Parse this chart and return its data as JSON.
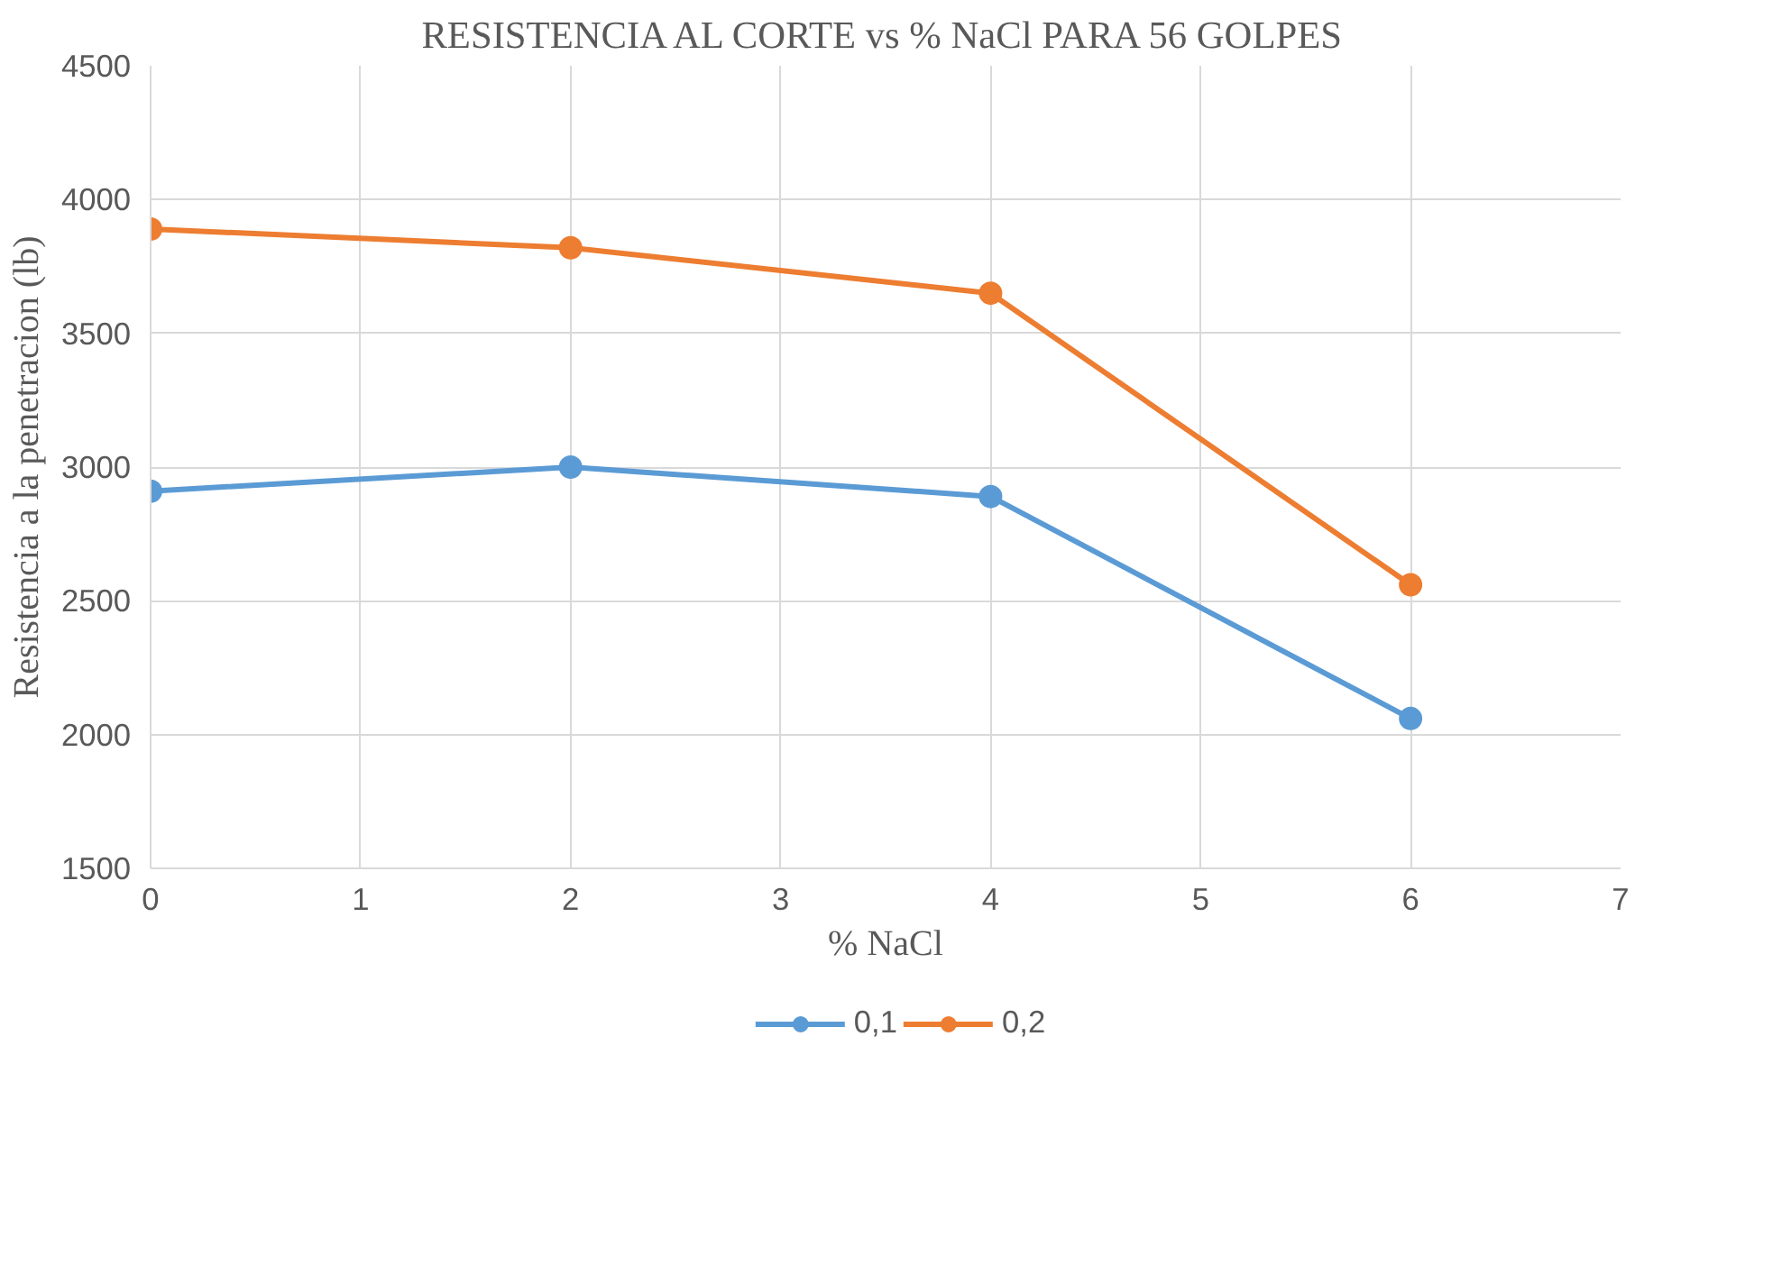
{
  "chart_data": {
    "type": "line",
    "title": "RESISTENCIA AL CORTE vs % NaCl PARA 56 GOLPES",
    "xlabel": "% NaCl",
    "ylabel": "Resistencia a la penetracion (lb)",
    "x": [
      0,
      2,
      4,
      6
    ],
    "series": [
      {
        "name": "0,1",
        "color": "#5b9bd5",
        "values": [
          2910,
          3000,
          2890,
          2060
        ]
      },
      {
        "name": "0,2",
        "color": "#ed7d31",
        "values": [
          3890,
          3820,
          3650,
          2560
        ]
      }
    ],
    "xlim": [
      0,
      7
    ],
    "xticks": [
      0,
      1,
      2,
      3,
      4,
      5,
      6,
      7
    ],
    "ylim": [
      1500,
      4500
    ],
    "yticks": [
      1500,
      2000,
      2500,
      3000,
      3500,
      4000,
      4500
    ],
    "grid": true,
    "legend": "bottom",
    "marker": "circle",
    "line_style": "solid"
  }
}
